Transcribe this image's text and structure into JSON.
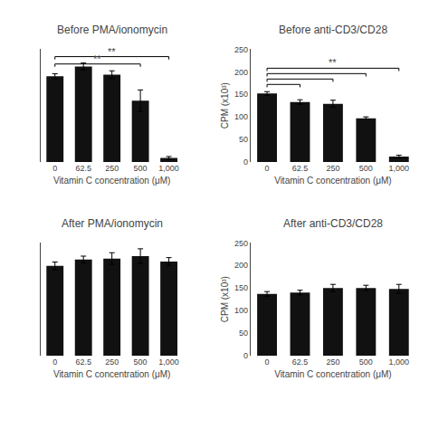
{
  "chart_data": [
    {
      "type": "bar",
      "title": "Before PMA/ionomycin",
      "categories": [
        "0",
        "62.5",
        "250",
        "500",
        "1,000"
      ],
      "values": [
        175,
        195,
        178,
        125,
        8
      ],
      "errors": [
        5,
        7,
        8,
        22,
        3
      ],
      "xlabel": "Vitamin C concentration (μM)",
      "ylim": [
        0,
        230
      ],
      "tick_labels": "x",
      "color": "#111111",
      "grid": false,
      "annotations": [
        {
          "from": "0",
          "to": "500",
          "y": 200,
          "text": "**"
        },
        {
          "from": "0",
          "to": "1,000",
          "y": 215,
          "text": "**"
        }
      ]
    },
    {
      "type": "bar",
      "title": "Before anti-CD3/CD28",
      "categories": [
        "0",
        "62.5",
        "250",
        "500",
        "1,000"
      ],
      "values": [
        152,
        133,
        129,
        97,
        12
      ],
      "errors": [
        4,
        5,
        8,
        3,
        3
      ],
      "xlabel": "Vitamin C concentration (μM)",
      "ylabel": "CPM (x10³)",
      "ylim": [
        0,
        250
      ],
      "yticks": [
        0,
        50,
        100,
        150,
        200,
        250
      ],
      "color": "#111111",
      "grid": false,
      "annotations": [
        {
          "from": "0",
          "to": "62.5",
          "y": 172
        },
        {
          "from": "0",
          "to": "250",
          "y": 184
        },
        {
          "from": "0",
          "to": "500",
          "y": 196
        },
        {
          "from": "0",
          "to": "1,000",
          "y": 208,
          "text": "**"
        }
      ]
    },
    {
      "type": "bar",
      "title": "After PMA/ionomycin",
      "categories": [
        "0",
        "62.5",
        "250",
        "500",
        "1,000"
      ],
      "values": [
        183,
        196,
        198,
        203,
        192
      ],
      "errors": [
        8,
        7,
        12,
        15,
        8
      ],
      "xlabel": "Vitamin C concentration (μM)",
      "ylim": [
        0,
        230
      ],
      "tick_labels": "x",
      "color": "#111111",
      "grid": false
    },
    {
      "type": "bar",
      "title": "After anti-CD3/CD28",
      "categories": [
        "0",
        "62.5",
        "250",
        "500",
        "1,000"
      ],
      "values": [
        137,
        140,
        150,
        150,
        148
      ],
      "errors": [
        5,
        5,
        8,
        6,
        10
      ],
      "xlabel": "Vitamin C concentration (μM)",
      "ylabel": "CPM (x10³)",
      "ylim": [
        0,
        250
      ],
      "yticks": [
        0,
        50,
        100,
        150,
        200,
        250
      ],
      "color": "#111111",
      "grid": false
    }
  ]
}
